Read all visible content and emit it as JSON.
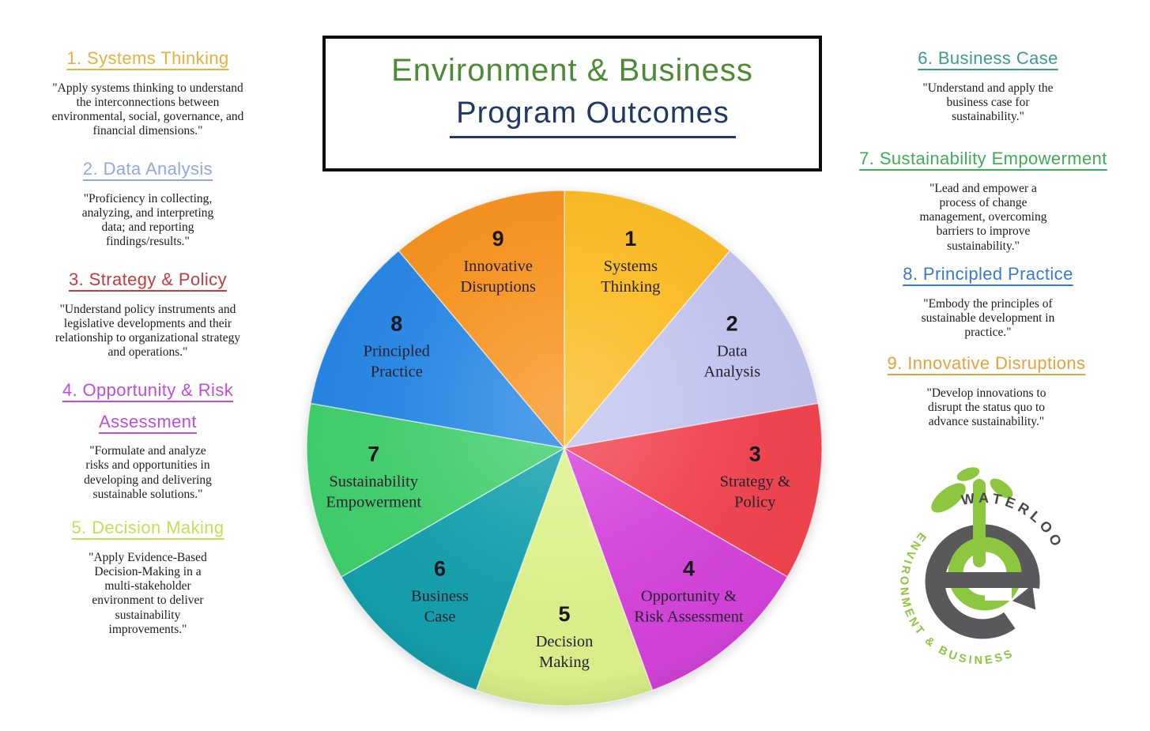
{
  "title_box": {
    "line1": "Environment & Business",
    "line2": "Program Outcomes",
    "line1_color": "#4c8a33",
    "line2_color": "#1f3864"
  },
  "left_items": [
    {
      "heading": "1. Systems Thinking",
      "color": "#e6b13c",
      "description": "\"Apply systems thinking to understand\nthe interconnections between\nenvironmental, social, governance, and\nfinancial dimensions.\""
    },
    {
      "heading": "2. Data Analysis",
      "color": "#8fa9db",
      "description": "\"Proficiency in collecting,\nanalyzing, and interpreting\ndata; and reporting\nfindings/results.\""
    },
    {
      "heading": "3. Strategy & Policy",
      "color": "#c43b3e",
      "description": "\"Understand policy instruments and\nlegislative developments and their\nrelationship to organizational strategy\nand operations.\""
    },
    {
      "heading": "4. Opportunity & Risk\nAssessment",
      "color": "#bd4dd8",
      "description": "\"Formulate and analyze\nrisks and opportunities in\ndeveloping and delivering\nsustainable solutions.\""
    },
    {
      "heading": "5. Decision Making",
      "color": "#c4df55",
      "description": "\"Apply Evidence-Based\nDecision-Making in a\nmulti-stakeholder\nenvironment to deliver\nsustainability\nimprovements.\""
    }
  ],
  "right_items": [
    {
      "heading": "6. Business Case",
      "color": "#3e9a8f",
      "description": "\"Understand and apply the\nbusiness case for\nsustainability.\""
    },
    {
      "heading": "7. Sustainability Empowerment",
      "color": "#41ab58",
      "description": "\"Lead and empower a\nprocess of change\nmanagement, overcoming\nbarriers to improve\nsustainability.\""
    },
    {
      "heading": "8. Principled Practice",
      "color": "#3a79c8",
      "description": "\"Embody the principles of\nsustainable development in\npractice.\""
    },
    {
      "heading": "9. Innovative Disruptions",
      "color": "#e2a23d",
      "description": "\"Develop innovations to\ndisrupt the status quo to\nadvance sustainability.\""
    }
  ],
  "chart_data": {
    "type": "pie",
    "title": "Environment & Business Program Outcomes",
    "start_angle_deg": 0,
    "direction": "clockwise",
    "note": "9 equal slices of 40 degrees each, slice 1 starting at 12 o'clock",
    "slices": [
      {
        "number": "1",
        "label": "Systems Thinking",
        "label_lines": [
          "Systems",
          "Thinking"
        ],
        "value_deg": 40,
        "color": "#fbbb22"
      },
      {
        "number": "2",
        "label": "Data Analysis",
        "label_lines": [
          "Data",
          "Analysis"
        ],
        "value_deg": 40,
        "color": "#c2c4ef"
      },
      {
        "number": "3",
        "label": "Strategy & Policy",
        "label_lines": [
          "Strategy &",
          "Policy"
        ],
        "value_deg": 40,
        "color": "#f0434f"
      },
      {
        "number": "4",
        "label": "Opportunity & Risk Assessment",
        "label_lines": [
          "Opportunity &",
          "Risk Assessment"
        ],
        "value_deg": 40,
        "color": "#d443da"
      },
      {
        "number": "5",
        "label": "Decision Making",
        "label_lines": [
          "Decision",
          "Making"
        ],
        "value_deg": 40,
        "color": "#dcf28b"
      },
      {
        "number": "6",
        "label": "Business Case",
        "label_lines": [
          "Business",
          "Case"
        ],
        "value_deg": 40,
        "color": "#14a0ad"
      },
      {
        "number": "7",
        "label": "Sustainability Empowerment",
        "label_lines": [
          "Sustainability",
          "Empowerment"
        ],
        "value_deg": 40,
        "color": "#41cf6c"
      },
      {
        "number": "8",
        "label": "Principled Practice",
        "label_lines": [
          "Principled",
          "Practice"
        ],
        "value_deg": 40,
        "color": "#2686e4"
      },
      {
        "number": "9",
        "label": "Innovative Disruptions",
        "label_lines": [
          "Innovative",
          "Disruptions"
        ],
        "value_deg": 40,
        "color": "#f6921e"
      }
    ]
  },
  "logo": {
    "top_text": "WATERLOO",
    "arc_text": "ENVIRONMENT & BUSINESS",
    "green": "#8dc63f",
    "gray": "#59595c",
    "dark_gray": "#48484a"
  }
}
